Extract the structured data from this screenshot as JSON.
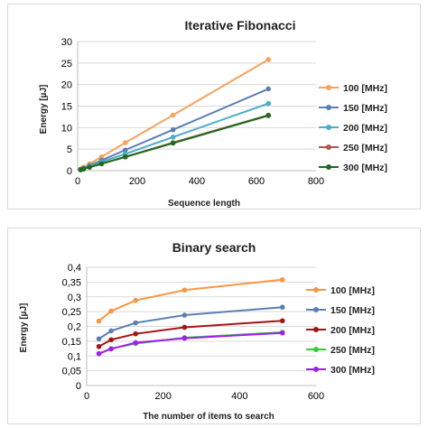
{
  "chart_data": [
    {
      "type": "line",
      "title": "Iterative Fibonacci",
      "xlabel": "Sequence length",
      "ylabel": "Energy [µJ]",
      "xlim": [
        0,
        800
      ],
      "ylim": [
        0,
        30
      ],
      "xticks": [
        "0",
        "200",
        "400",
        "600",
        "800"
      ],
      "yticks": [
        "0",
        "5",
        "10",
        "15",
        "20",
        "25",
        "30"
      ],
      "grid": "horizontal",
      "legend_position": "right",
      "x": [
        10,
        20,
        40,
        80,
        160,
        320,
        640
      ],
      "series": [
        {
          "name": "100 [MHz]",
          "color": "#f4a460",
          "values": [
            0.4,
            0.8,
            1.6,
            3.2,
            6.5,
            12.9,
            25.8
          ]
        },
        {
          "name": "150 [MHz]",
          "color": "#5b7fb4",
          "values": [
            0.3,
            0.6,
            1.2,
            2.4,
            4.8,
            9.5,
            19.0
          ]
        },
        {
          "name": "200 [MHz]",
          "color": "#4bacc6",
          "values": [
            0.25,
            0.5,
            1.0,
            2.0,
            3.9,
            7.8,
            15.6
          ]
        },
        {
          "name": "250 [MHz]",
          "color": "#c0504d",
          "values": [
            0.2,
            0.4,
            0.8,
            1.6,
            3.2,
            6.5,
            12.9
          ]
        },
        {
          "name": "300 [MHz]",
          "color": "#1e6b1e",
          "values": [
            0.2,
            0.4,
            0.8,
            1.6,
            3.2,
            6.4,
            12.8
          ]
        }
      ]
    },
    {
      "type": "line",
      "title": "Binary search",
      "xlabel": "The number of items to search",
      "ylabel": "Energy [µJ]",
      "xlim": [
        0,
        600
      ],
      "ylim": [
        0,
        0.4
      ],
      "xticks": [
        "0",
        "200",
        "400",
        "600"
      ],
      "yticks": [
        "0",
        "0,05",
        "0,1",
        "0,15",
        "0,2",
        "0,25",
        "0,3",
        "0,35",
        "0,4"
      ],
      "grid": "horizontal",
      "legend_position": "right",
      "x": [
        32,
        64,
        128,
        256,
        512
      ],
      "series": [
        {
          "name": "100 [MHz]",
          "color": "#f79646",
          "values": [
            0.218,
            0.252,
            0.288,
            0.323,
            0.358
          ]
        },
        {
          "name": "150 [MHz]",
          "color": "#5b7fb4",
          "values": [
            0.158,
            0.185,
            0.212,
            0.238,
            0.265
          ]
        },
        {
          "name": "200 [MHz]",
          "color": "#a31515",
          "values": [
            0.132,
            0.155,
            0.175,
            0.197,
            0.219
          ]
        },
        {
          "name": "250 [MHz]",
          "color": "#33cc33",
          "values": [
            0.108,
            0.125,
            0.142,
            0.162,
            0.18
          ]
        },
        {
          "name": "300 [MHz]",
          "color": "#a020f0",
          "values": [
            0.108,
            0.124,
            0.145,
            0.16,
            0.178
          ]
        }
      ]
    }
  ]
}
